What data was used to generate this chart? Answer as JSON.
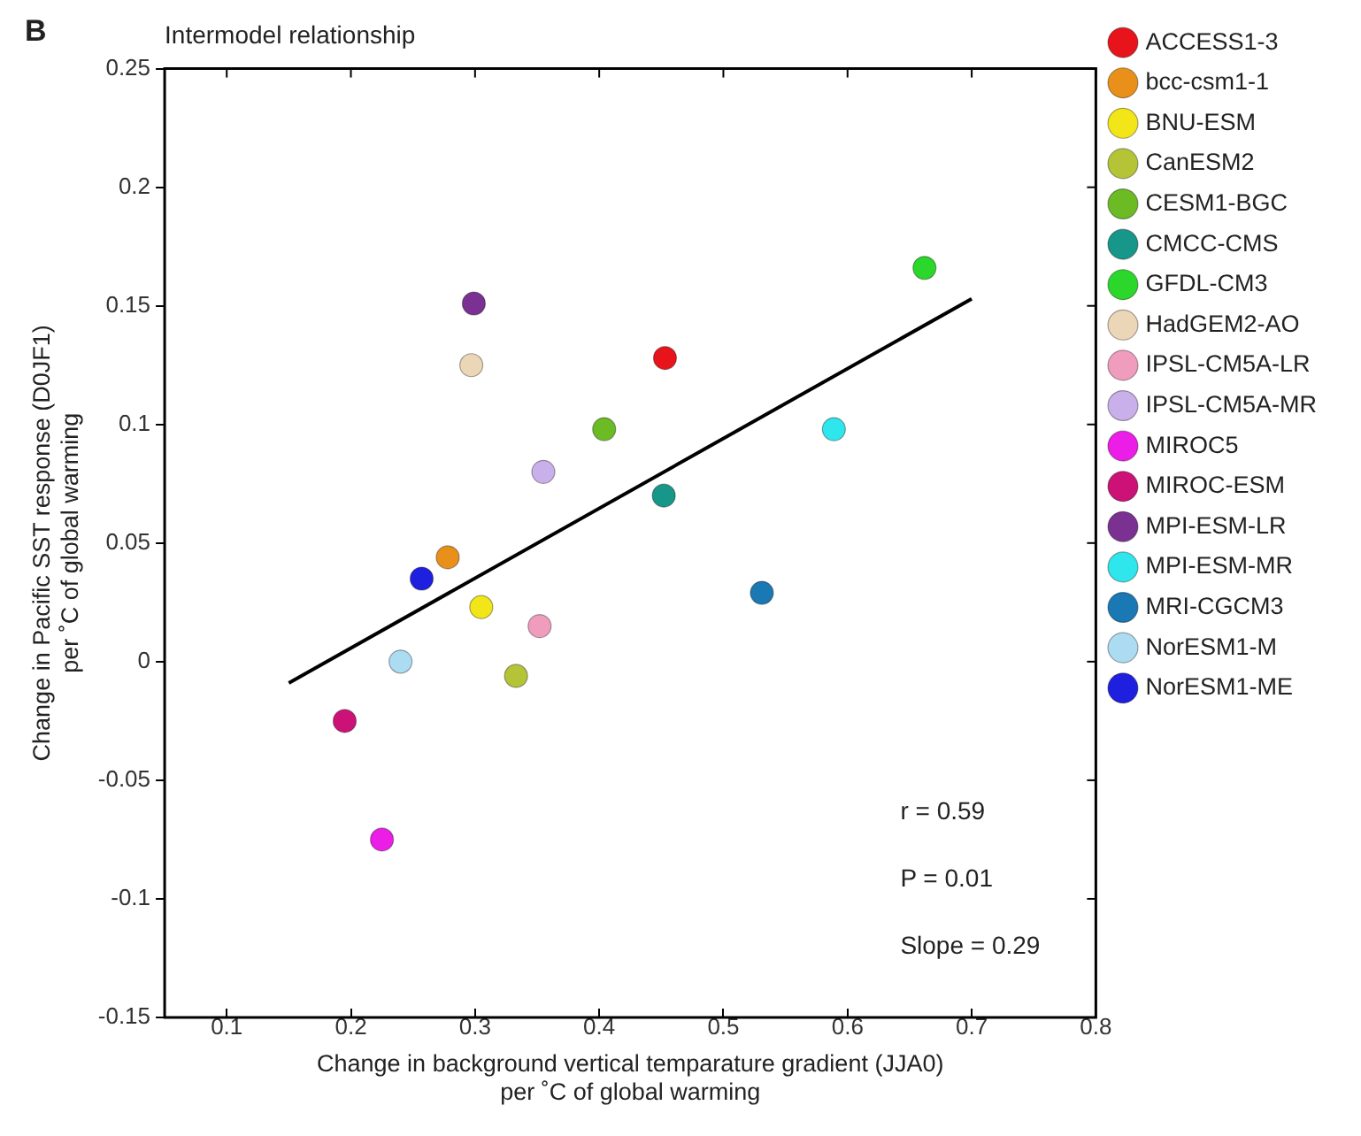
{
  "chart_data": {
    "type": "scatter",
    "title": "Intermodel relationship",
    "xlabel": "Change in background vertical temparature gradient (JJA0)\nper ˚C of global warming",
    "ylabel": "Change in Pacific SST response (D0JF1)\nper ˚C of global warming",
    "annotations": [
      "B",
      "r = 0.59",
      "P = 0.01",
      "Slope = 0.29"
    ],
    "xlim": [
      0.05,
      0.8
    ],
    "xticks": [
      0.1,
      0.2,
      0.3,
      0.4,
      0.5,
      0.6,
      0.7,
      0.8
    ],
    "ylim": [
      -0.15,
      0.25
    ],
    "yticks": [
      -0.15,
      -0.1,
      -0.05,
      0,
      0.05,
      0.1,
      0.15,
      0.2,
      0.25
    ],
    "grid": false,
    "legend": "right",
    "marker": "circle",
    "series": [
      {
        "name": "ACCESS1-3",
        "color": "#e8141b",
        "x": [
          0.453
        ],
        "values": [
          0.128
        ]
      },
      {
        "name": "bcc-csm1-1",
        "color": "#e8901a",
        "x": [
          0.278
        ],
        "values": [
          0.044
        ]
      },
      {
        "name": "BNU-ESM",
        "color": "#f2e619",
        "x": [
          0.305
        ],
        "values": [
          0.023
        ]
      },
      {
        "name": "CanESM2",
        "color": "#b5c437",
        "x": [
          0.333
        ],
        "values": [
          -0.006
        ]
      },
      {
        "name": "CESM1-BGC",
        "color": "#6cbb24",
        "x": [
          0.404
        ],
        "values": [
          0.098
        ]
      },
      {
        "name": "CMCC-CMS",
        "color": "#17968a",
        "x": [
          0.452
        ],
        "values": [
          0.07
        ]
      },
      {
        "name": "GFDL-CM3",
        "color": "#2bd72b",
        "x": [
          0.662
        ],
        "values": [
          0.166
        ]
      },
      {
        "name": "HadGEM2-AO",
        "color": "#ecd6b8",
        "x": [
          0.297
        ],
        "values": [
          0.125
        ]
      },
      {
        "name": "IPSL-CM5A-LR",
        "color": "#f09cbd",
        "x": [
          0.352
        ],
        "values": [
          0.015
        ]
      },
      {
        "name": "IPSL-CM5A-MR",
        "color": "#c9b0ea",
        "x": [
          0.355
        ],
        "values": [
          0.08
        ]
      },
      {
        "name": "MIROC5",
        "color": "#ec1de6",
        "x": [
          0.225
        ],
        "values": [
          -0.075
        ]
      },
      {
        "name": "MIROC-ESM",
        "color": "#cc1177",
        "x": [
          0.195
        ],
        "values": [
          -0.025
        ]
      },
      {
        "name": "MPI-ESM-LR",
        "color": "#7a3192",
        "x": [
          0.299
        ],
        "values": [
          0.151
        ]
      },
      {
        "name": "MPI-ESM-MR",
        "color": "#2ee6ec",
        "x": [
          0.589
        ],
        "values": [
          0.098
        ]
      },
      {
        "name": "MRI-CGCM3",
        "color": "#1a78b4",
        "x": [
          0.531
        ],
        "values": [
          0.029
        ]
      },
      {
        "name": "NorESM1-M",
        "color": "#acdcf2",
        "x": [
          0.24
        ],
        "values": [
          0.0
        ]
      },
      {
        "name": "NorESM1-ME",
        "color": "#1f1fe0",
        "x": [
          0.257
        ],
        "values": [
          0.035
        ]
      },
      {
        "type": "line",
        "color": "#000000",
        "marker": "none",
        "x": [
          0.15,
          0.7
        ],
        "values": [
          -0.009,
          0.153
        ]
      }
    ]
  }
}
